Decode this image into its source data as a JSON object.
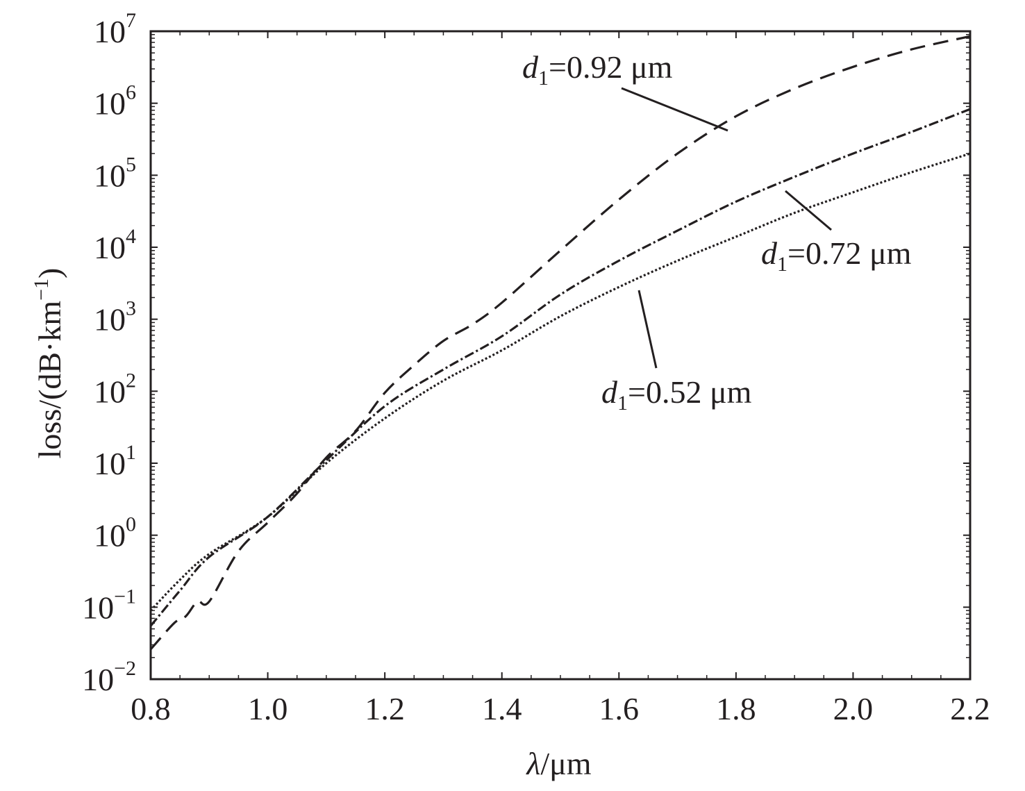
{
  "chart_data": {
    "type": "line",
    "title": "",
    "xlabel": {
      "symbol": "λ",
      "unit": "/μm"
    },
    "ylabel": {
      "prefix": "loss/(dB·km",
      "exp": "−1",
      "suffix": ")"
    },
    "xlim": [
      0.8,
      2.2
    ],
    "ylim": [
      0.01,
      10000000
    ],
    "yscale": "log",
    "grid": false,
    "xticks": [
      "0.8",
      "1.0",
      "1.2",
      "1.4",
      "1.6",
      "1.8",
      "2.0",
      "2.2"
    ],
    "yticks": [
      {
        "base": "10",
        "exp": "−2",
        "value": 0.01
      },
      {
        "base": "10",
        "exp": "−1",
        "value": 0.1
      },
      {
        "base": "10",
        "exp": "0",
        "value": 1
      },
      {
        "base": "10",
        "exp": "1",
        "value": 10
      },
      {
        "base": "10",
        "exp": "2",
        "value": 100
      },
      {
        "base": "10",
        "exp": "3",
        "value": 1000
      },
      {
        "base": "10",
        "exp": "4",
        "value": 10000
      },
      {
        "base": "10",
        "exp": "5",
        "value": 100000
      },
      {
        "base": "10",
        "exp": "6",
        "value": 1000000
      },
      {
        "base": "10",
        "exp": "7",
        "value": 10000000
      }
    ],
    "series": [
      {
        "name": "d1=0.92 μm",
        "style": "dashed",
        "x": [
          0.8,
          0.84,
          0.86,
          0.88,
          0.9,
          0.95,
          1.0,
          1.05,
          1.1,
          1.15,
          1.2,
          1.25,
          1.3,
          1.35,
          1.4,
          1.5,
          1.6,
          1.7,
          1.8,
          1.9,
          2.0,
          2.1,
          2.2
        ],
        "y": [
          0.026,
          0.06,
          0.075,
          0.12,
          0.12,
          0.6,
          1.5,
          3.8,
          12,
          28,
          95,
          230,
          500,
          850,
          1700,
          9000,
          46000,
          200000,
          660000,
          1600000,
          3200000,
          5600000,
          8500000
        ]
      },
      {
        "name": "d1=0.72 μm",
        "style": "dash-dot",
        "x": [
          0.8,
          0.85,
          0.9,
          1.0,
          1.1,
          1.2,
          1.3,
          1.4,
          1.5,
          1.6,
          1.7,
          1.8,
          1.9,
          2.0,
          2.1,
          2.2
        ],
        "y": [
          0.055,
          0.17,
          0.5,
          1.8,
          11,
          62,
          200,
          580,
          2200,
          6500,
          17000,
          43000,
          95000,
          200000,
          400000,
          830000
        ]
      },
      {
        "name": "d1=0.52 μm",
        "style": "dotted",
        "x": [
          0.8,
          0.85,
          0.9,
          1.0,
          1.1,
          1.2,
          1.3,
          1.4,
          1.5,
          1.6,
          1.7,
          1.8,
          1.9,
          2.0,
          2.1,
          2.2
        ],
        "y": [
          0.09,
          0.24,
          0.55,
          1.8,
          10,
          42,
          140,
          370,
          1100,
          2800,
          6500,
          14000,
          30000,
          58000,
          110000,
          200000
        ]
      }
    ],
    "annotations": [
      {
        "series": 0,
        "italic": "d",
        "sub": "1",
        "rest": "=0.92 μm"
      },
      {
        "series": 1,
        "italic": "d",
        "sub": "1",
        "rest": "=0.72 μm"
      },
      {
        "series": 2,
        "italic": "d",
        "sub": "1",
        "rest": "=0.52 μm"
      }
    ]
  },
  "colors": {
    "ink": "#231f20",
    "background": "#ffffff"
  }
}
